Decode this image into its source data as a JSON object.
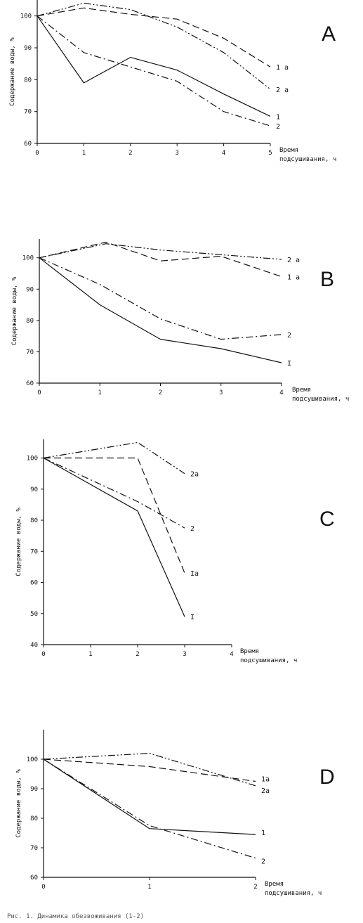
{
  "chart_data": [
    {
      "type": "line",
      "panel": "A",
      "ylabel": "Содержание воды, %",
      "xlabel_lines": [
        "Время",
        "подсушивания, ч"
      ],
      "xlim": [
        0,
        5
      ],
      "ylim": [
        60,
        105
      ],
      "x_ticks": [
        0,
        1,
        2,
        3,
        4,
        5
      ],
      "y_ticks": [
        60,
        70,
        80,
        90,
        100
      ],
      "series": [
        {
          "name": "1",
          "style": "solid",
          "x": [
            0,
            1,
            2,
            3,
            4,
            5
          ],
          "y": [
            100,
            79,
            87,
            83,
            75.5,
            68.5
          ]
        },
        {
          "name": "2",
          "style": "dashdot",
          "x": [
            0,
            1,
            2,
            3,
            4,
            5
          ],
          "y": [
            100,
            88.5,
            84,
            79.5,
            70,
            65.5
          ]
        },
        {
          "name": "1 а",
          "style": "dashed",
          "x": [
            0,
            1,
            2,
            3,
            4,
            5
          ],
          "y": [
            100,
            102.5,
            100.5,
            99,
            93,
            84
          ]
        },
        {
          "name": "2 а",
          "style": "dashdotdot",
          "x": [
            0,
            1,
            2,
            3,
            4,
            5
          ],
          "y": [
            100,
            104,
            102,
            96.5,
            88.5,
            77
          ]
        }
      ]
    },
    {
      "type": "line",
      "panel": "B",
      "ylabel": "Содержание воды, %",
      "xlabel_lines": [
        "Время",
        "подсушивания, ч"
      ],
      "xlim": [
        0,
        4
      ],
      "ylim": [
        60,
        106
      ],
      "x_ticks": [
        0,
        1,
        2,
        3,
        4
      ],
      "y_ticks": [
        60,
        70,
        80,
        90,
        100
      ],
      "series": [
        {
          "name": "I",
          "style": "solid",
          "x": [
            0,
            1,
            2,
            3,
            4
          ],
          "y": [
            100,
            85,
            74,
            71,
            66.5
          ]
        },
        {
          "name": "2",
          "style": "dashdot",
          "x": [
            0,
            1,
            2,
            3,
            4
          ],
          "y": [
            100,
            91.5,
            80.5,
            74,
            75.5
          ]
        },
        {
          "name": "1 а",
          "style": "dashed",
          "x": [
            0,
            1.1,
            2,
            3,
            4
          ],
          "y": [
            100,
            105,
            99,
            100.5,
            94
          ]
        },
        {
          "name": "2 а",
          "style": "dashdotdot",
          "x": [
            0,
            1.1,
            2,
            3,
            4
          ],
          "y": [
            100,
            104.5,
            102.5,
            101,
            99.5
          ]
        }
      ]
    },
    {
      "type": "line",
      "panel": "C",
      "ylabel": "Содержание воды, %",
      "xlabel_lines": [
        "Время",
        "подсушивания, ч"
      ],
      "xlim": [
        0,
        4
      ],
      "ylim": [
        40,
        106
      ],
      "x_ticks": [
        0,
        1,
        2,
        3,
        4
      ],
      "y_ticks": [
        40,
        50,
        60,
        70,
        80,
        90,
        100
      ],
      "series": [
        {
          "name": "I",
          "style": "solid",
          "x": [
            0,
            2,
            3
          ],
          "y": [
            100,
            83,
            49
          ]
        },
        {
          "name": "2",
          "style": "dashdot",
          "x": [
            0,
            2,
            3
          ],
          "y": [
            100,
            86,
            77.5
          ]
        },
        {
          "name": "Iа",
          "style": "dashed",
          "x": [
            0,
            2,
            3
          ],
          "y": [
            100,
            100,
            63
          ]
        },
        {
          "name": "2а",
          "style": "dashdotdot",
          "x": [
            0,
            2,
            3
          ],
          "y": [
            100,
            105,
            95
          ]
        }
      ]
    },
    {
      "type": "line",
      "panel": "D",
      "ylabel": "Содержание воды, %",
      "xlabel_lines": [
        "Время",
        "подсушивания, ч"
      ],
      "xlim": [
        0,
        2
      ],
      "ylim": [
        60,
        110
      ],
      "x_ticks": [
        0,
        1,
        2
      ],
      "y_ticks": [
        60,
        70,
        80,
        90,
        100
      ],
      "series": [
        {
          "name": "1",
          "style": "solid",
          "x": [
            0,
            1,
            2
          ],
          "y": [
            100,
            76.5,
            74.5
          ]
        },
        {
          "name": "2",
          "style": "dashdot",
          "x": [
            0,
            1,
            2
          ],
          "y": [
            100,
            77.5,
            66.5
          ]
        },
        {
          "name": "1а",
          "style": "dashed",
          "x": [
            0,
            1,
            2
          ],
          "y": [
            100,
            97.5,
            92.5
          ]
        },
        {
          "name": "2а",
          "style": "dashdotdot",
          "x": [
            0,
            1,
            2
          ],
          "y": [
            100,
            102,
            91
          ]
        }
      ]
    }
  ],
  "caption": "Рис. 1. Динамика обезвоживания (1-2)"
}
